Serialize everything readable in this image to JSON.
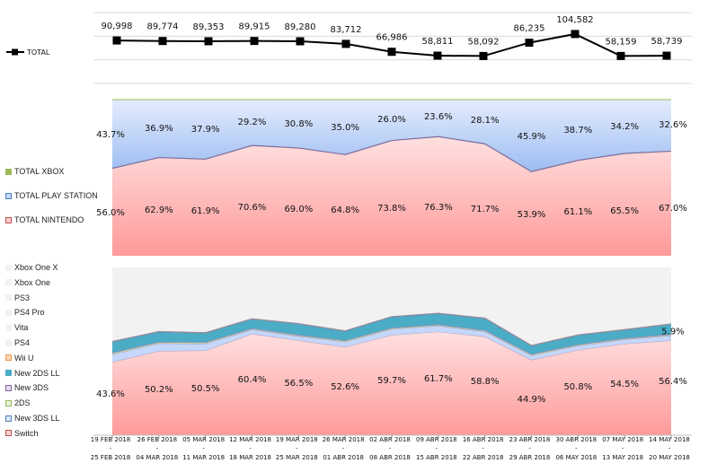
{
  "chart_data": [
    {
      "type": "line",
      "title": "",
      "legend": "TOTAL",
      "categories": [
        "19 FEB 2018 - 25 FEB 2018",
        "26 FEB 2018 - 04 MAR 2018",
        "05 MAR 2018 - 11 MAR 2018",
        "12 MAR 2018 - 18 MAR 2018",
        "19 MAR 2018 - 25 MAR 2018",
        "26 MAR 2018 - 01 ABR 2018",
        "02 ABR 2018 - 08 ABR 2018",
        "09 ABR 2018 - 15 ABR 2018",
        "16 ABR 2018 - 22 ABR 2018",
        "23 ABR 2018 - 29 ABR 2018",
        "30 ABR 2018 - 06 MAY 2018",
        "07 MAY 2018 - 13 MAY 2018",
        "14 MAY 2018 - 20 MAY 2018"
      ],
      "values": [
        90998,
        89774,
        89353,
        89915,
        89280,
        83712,
        66986,
        58811,
        58092,
        86235,
        104582,
        58159,
        58739
      ],
      "labels": [
        "90,998",
        "89,774",
        "89,353",
        "89,915",
        "89,280",
        "83,712",
        "66,986",
        "58,811",
        "58,092",
        "86,235",
        "104,582",
        "58,159",
        "58,739"
      ],
      "ylim": [
        0,
        150000
      ],
      "grid": true,
      "color": "#000000"
    },
    {
      "type": "area",
      "stacked": "100%",
      "series": [
        {
          "name": "TOTAL NINTENDO",
          "color": "#ff9999",
          "values": [
            56.0,
            62.9,
            61.9,
            70.6,
            69.0,
            64.8,
            73.8,
            76.3,
            71.7,
            53.9,
            61.1,
            65.5,
            67.0
          ],
          "labels": [
            "56.0%",
            "62.9%",
            "61.9%",
            "70.6%",
            "69.0%",
            "64.8%",
            "73.8%",
            "76.3%",
            "71.7%",
            "53.9%",
            "61.1%",
            "65.5%",
            "67.0%"
          ]
        },
        {
          "name": "TOTAL PLAY STATION",
          "color": "#8fb4f0",
          "values": [
            43.7,
            36.9,
            37.9,
            29.2,
            30.8,
            35.0,
            26.0,
            23.6,
            28.1,
            45.9,
            38.7,
            34.2,
            32.6
          ],
          "labels": [
            "43.7%",
            "36.9%",
            "37.9%",
            "29.2%",
            "30.8%",
            "35.0%",
            "26.0%",
            "23.6%",
            "28.1%",
            "45.9%",
            "38.7%",
            "34.2%",
            "32.6%"
          ]
        },
        {
          "name": "TOTAL XBOX",
          "color": "#9bbb59",
          "values": [
            0.3,
            0.2,
            0.2,
            0.2,
            0.2,
            0.2,
            0.2,
            0.1,
            0.2,
            0.2,
            0.2,
            0.3,
            0.4
          ]
        }
      ],
      "ylim": [
        0,
        100
      ]
    },
    {
      "type": "area",
      "stacked": "100%",
      "series": [
        {
          "name": "Switch",
          "color": "#ff9999",
          "values": [
            43.6,
            50.2,
            50.5,
            60.4,
            56.5,
            52.6,
            59.7,
            61.7,
            58.8,
            44.9,
            50.8,
            54.5,
            56.4
          ],
          "labels": [
            "43.6%",
            "50.2%",
            "50.5%",
            "60.4%",
            "56.5%",
            "52.6%",
            "59.7%",
            "61.7%",
            "58.8%",
            "44.9%",
            "50.8%",
            "54.5%",
            "56.4%"
          ]
        },
        {
          "name": "New 3DS LL",
          "color": "#c5d7fb",
          "values": [
            4.5,
            4.5,
            4.0,
            2.5,
            2.5,
            3.0,
            3.5,
            3.5,
            3.0,
            2.5,
            2.5,
            2.5,
            3.0
          ]
        },
        {
          "name": "2DS",
          "color": "#d7e4a4",
          "values": [
            0.7,
            0.6,
            0.6,
            0.5,
            0.5,
            0.6,
            0.5,
            0.5,
            0.5,
            0.6,
            0.5,
            0.5,
            0.5
          ]
        },
        {
          "name": "New 3DS",
          "color": "#c9b3e0",
          "values": [
            0.4,
            0.3,
            0.3,
            0.3,
            0.3,
            0.3,
            0.3,
            0.3,
            0.3,
            0.3,
            0.3,
            0.3,
            0.3
          ]
        },
        {
          "name": "New 2DS LL",
          "color": "#4bacc6",
          "values": [
            6.5,
            6.0,
            5.5,
            5.5,
            6.5,
            5.5,
            6.5,
            6.5,
            7.0,
            5.0,
            5.5,
            5.0,
            5.9
          ],
          "labels": [
            "",
            "",
            "",
            "",
            "",
            "",
            "",
            "",
            "",
            "",
            "",
            "",
            "5.9%"
          ]
        },
        {
          "name": "Wii U",
          "color": "#f4a460",
          "values": [
            0.3,
            0.3,
            0.3,
            0.3,
            0.3,
            0.3,
            0.3,
            0.3,
            0.3,
            0.3,
            0.3,
            0.3,
            0.3
          ]
        },
        {
          "name": "PS4",
          "color": "#f2f2f2",
          "values": []
        },
        {
          "name": "Vita",
          "color": "#f2f2f2",
          "values": []
        },
        {
          "name": "PS4 Pro",
          "color": "#f2f2f2",
          "values": []
        },
        {
          "name": "PS3",
          "color": "#f2f2f2",
          "values": []
        },
        {
          "name": "Xbox One",
          "color": "#f2f2f2",
          "values": []
        },
        {
          "name": "Xbox One X",
          "color": "#f2f2f2",
          "values": []
        }
      ],
      "ylim": [
        0,
        100
      ]
    }
  ],
  "x_labels_top": [
    "19 FEB 2018",
    "26 FEB 2018",
    "05 MAR 2018",
    "12 MAR 2018",
    "19 MAR 2018",
    "26 MAR 2018",
    "02 ABR 2018",
    "09 ABR 2018",
    "16 ABR 2018",
    "23 ABR 2018",
    "30 ABR 2018",
    "07 MAY 2018",
    "14 MAY 2018"
  ],
  "x_labels_bottom": [
    "25 FEB 2018",
    "04 MAR 2018",
    "11 MAR 2018",
    "18 MAR 2018",
    "25 MAR 2018",
    "01 ABR 2018",
    "08 ABR 2018",
    "15 ABR 2018",
    "22 ABR 2018",
    "29 ABR 2018",
    "06 MAY 2018",
    "13 MAY 2018",
    "20 MAY 2018"
  ],
  "x_sep": "-"
}
